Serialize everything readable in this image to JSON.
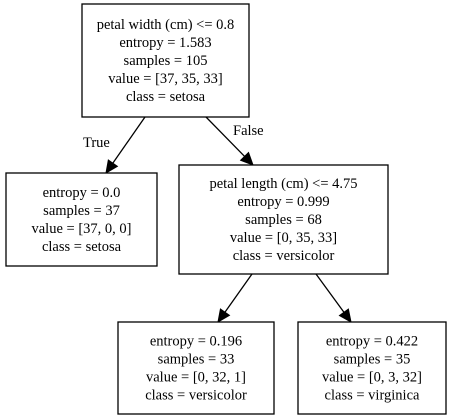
{
  "tree": {
    "nodes": [
      {
        "id": "root",
        "lines": [
          "petal width (cm) <= 0.8",
          "entropy = 1.583",
          "samples = 105",
          "value = [37, 35, 33]",
          "class = setosa"
        ]
      },
      {
        "id": "left_leaf",
        "lines": [
          "entropy = 0.0",
          "samples = 37",
          "value = [37, 0, 0]",
          "class = setosa"
        ]
      },
      {
        "id": "right_split",
        "lines": [
          "petal length (cm) <= 4.75",
          "entropy = 0.999",
          "samples = 68",
          "value = [0, 35, 33]",
          "class = versicolor"
        ]
      },
      {
        "id": "leaf_versicolor",
        "lines": [
          "entropy = 0.196",
          "samples = 33",
          "value = [0, 32, 1]",
          "class = versicolor"
        ]
      },
      {
        "id": "leaf_virginica",
        "lines": [
          "entropy = 0.422",
          "samples = 35",
          "value = [0, 3, 32]",
          "class = virginica"
        ]
      }
    ],
    "edges": [
      {
        "from": "root",
        "to": "left_leaf",
        "label": "True"
      },
      {
        "from": "root",
        "to": "right_split",
        "label": "False"
      },
      {
        "from": "right_split",
        "to": "leaf_versicolor",
        "label": ""
      },
      {
        "from": "right_split",
        "to": "leaf_virginica",
        "label": ""
      }
    ]
  }
}
